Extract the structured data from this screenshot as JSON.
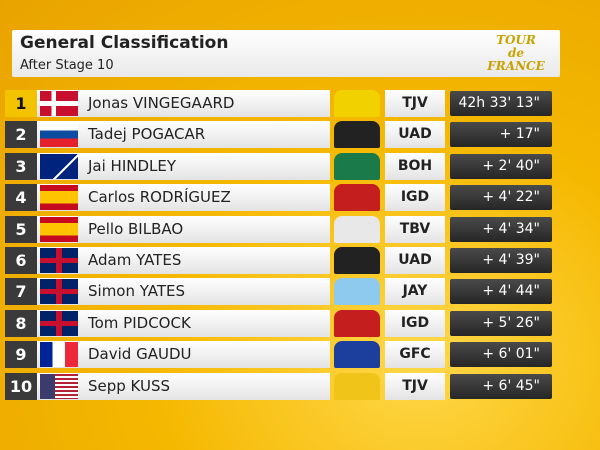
{
  "header": {
    "title": "General Classification",
    "subtitle": "After Stage 10",
    "logo": "TOUR de FRANCE"
  },
  "table": {
    "rows": [
      [
        1,
        "Jonas VINGEGAARD",
        "TJV",
        "42h 33' 13\""
      ],
      [
        2,
        "Tadej POGACAR",
        "UAD",
        "+ 17\""
      ],
      [
        3,
        "Jai HINDLEY",
        "BOH",
        "+ 2' 40\""
      ],
      [
        4,
        "Carlos RODRÍGUEZ",
        "IGD",
        "+ 4' 22\""
      ],
      [
        5,
        "Pello BILBAO",
        "TBV",
        "+ 4' 34\""
      ],
      [
        6,
        "Adam YATES",
        "UAD",
        "+ 4' 39\""
      ],
      [
        7,
        "Simon YATES",
        "JAY",
        "+ 4' 44\""
      ],
      [
        8,
        "Tom PIDCOCK",
        "IGD",
        "+ 5' 26\""
      ],
      [
        9,
        "David GAUDU",
        "GFC",
        "+ 6' 01\""
      ],
      [
        10,
        "Sepp KUSS",
        "TJV",
        "+ 6' 45\""
      ]
    ]
  }
}
